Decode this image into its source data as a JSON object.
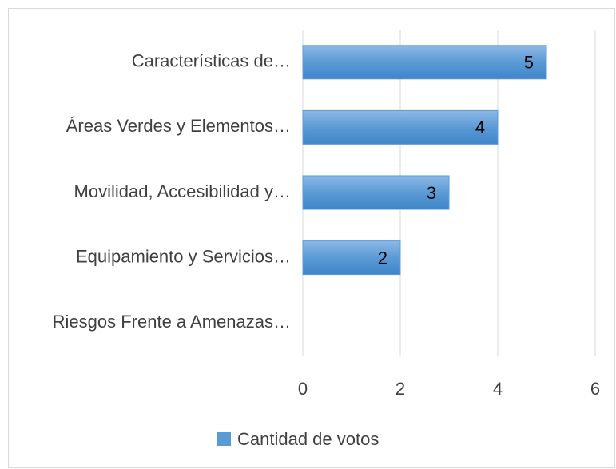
{
  "chart_data": {
    "type": "bar",
    "orientation": "horizontal",
    "categories": [
      "Características de…",
      "Áreas Verdes y Elementos…",
      "Movilidad, Accesibilidad y…",
      "Equipamiento y Servicios…",
      "Riesgos Frente a Amenazas…"
    ],
    "series": [
      {
        "name": "Cantidad de votos",
        "color": "#5b9bd5",
        "values": [
          5,
          4,
          3,
          2,
          null
        ]
      }
    ],
    "xlim": [
      0,
      6
    ],
    "xticks": [
      0,
      2,
      4,
      6
    ],
    "grid": true,
    "data_labels": true,
    "legend": "bottom"
  }
}
